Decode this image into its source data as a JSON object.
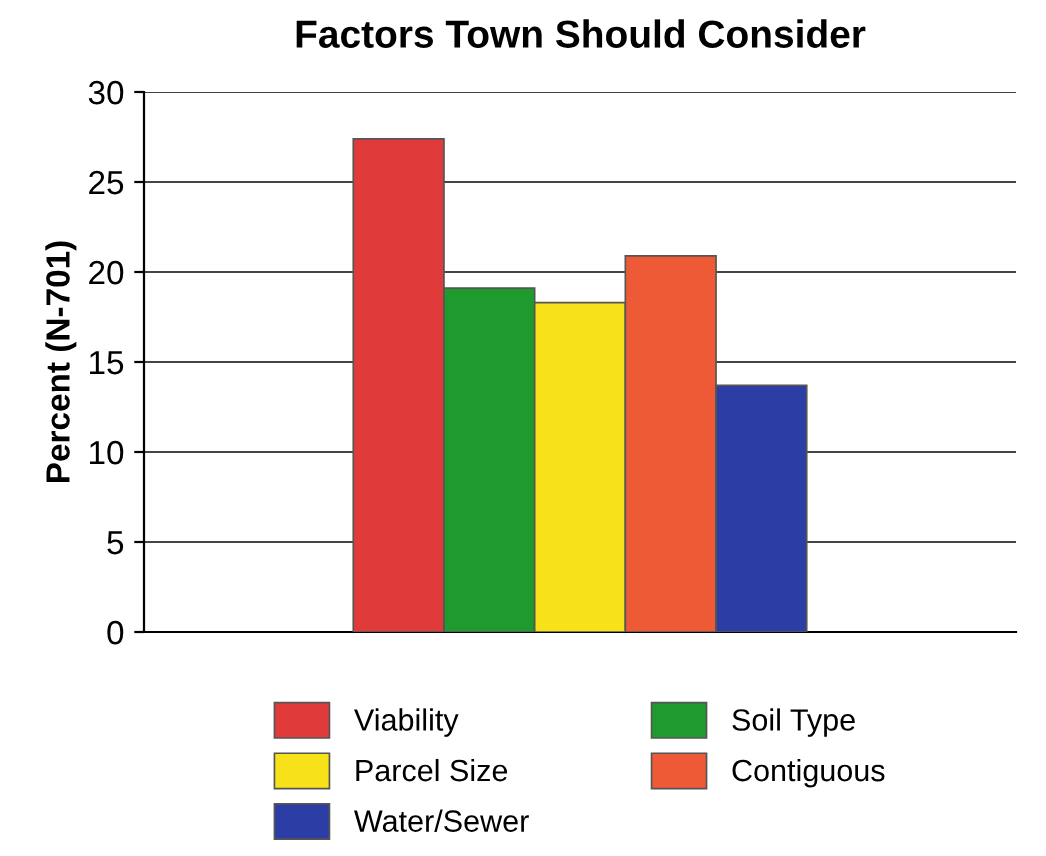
{
  "chart_data": {
    "type": "bar",
    "title": "Factors Town Should Consider",
    "ylabel": "Percent (N-701)",
    "categories": [
      null
    ],
    "series": [
      {
        "name": "Viability",
        "color": "#e03a3a",
        "values": [
          27.4
        ]
      },
      {
        "name": "Soil Type",
        "color": "#1f9a2e",
        "values": [
          19.1
        ]
      },
      {
        "name": "Parcel Size",
        "color": "#f7e21a",
        "values": [
          18.3
        ]
      },
      {
        "name": "Contiguous",
        "color": "#ee5a36",
        "values": [
          20.9
        ]
      },
      {
        "name": "Water/Sewer",
        "color": "#2c3ea6",
        "values": [
          13.7
        ]
      }
    ],
    "ylim": [
      0,
      30
    ],
    "yticks": [
      0,
      5,
      10,
      15,
      20,
      25,
      30
    ],
    "grid": "y",
    "legend": "bottom"
  }
}
